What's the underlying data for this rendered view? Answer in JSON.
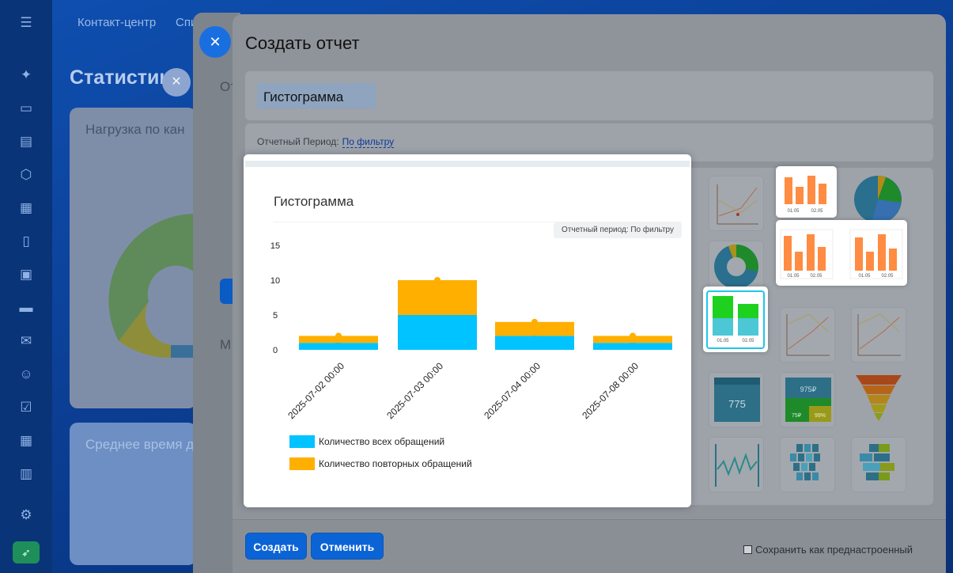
{
  "background": {
    "topbar": [
      "Контакт-центр",
      "Спи"
    ],
    "page_title": "Статистик",
    "card1_label": "Нагрузка по кан",
    "card2_label": "Среднее время д",
    "side_labels": [
      "От",
      "М"
    ]
  },
  "panel": {
    "title": "Создать отчет",
    "name_value": "Гистограмма",
    "period_label": "Отчетный Период:",
    "period_value": "По фильтру",
    "create_label": "Создать",
    "cancel_label": "Отменить",
    "save_preset_label": "Сохранить как преднастроенный"
  },
  "preview": {
    "title": "Гистограмма",
    "badge": "Отчетный период: По фильтру",
    "legend": [
      {
        "label": "Количество всех обращений",
        "color": "#00c3ff"
      },
      {
        "label": "Количество повторных обращений",
        "color": "#ffaf00"
      }
    ]
  },
  "tiles": {
    "date_ticks": [
      "01.05",
      "02.05"
    ],
    "kpi_value": "775",
    "kpi_small_1": "975₽",
    "kpi_small_2": "75₽",
    "kpi_small_3": "99%"
  },
  "colors": {
    "accent": "#0a64d6",
    "series_all": "#00c3ff",
    "series_repeat": "#ffaf00"
  },
  "chart_data": {
    "type": "bar",
    "stacked": true,
    "categories": [
      "2025-07-02 00:00",
      "2025-07-03 00:00",
      "2025-07-04 00:00",
      "2025-07-08 00:00"
    ],
    "series": [
      {
        "name": "Количество всех обращений",
        "values": [
          1,
          5,
          2,
          1
        ]
      },
      {
        "name": "Количество повторных обращений",
        "values": [
          1,
          5,
          2,
          1
        ]
      }
    ],
    "ylim": [
      0,
      15
    ],
    "yticks": [
      0,
      5,
      10,
      15
    ],
    "grid": false,
    "legend": "bottom-left"
  }
}
